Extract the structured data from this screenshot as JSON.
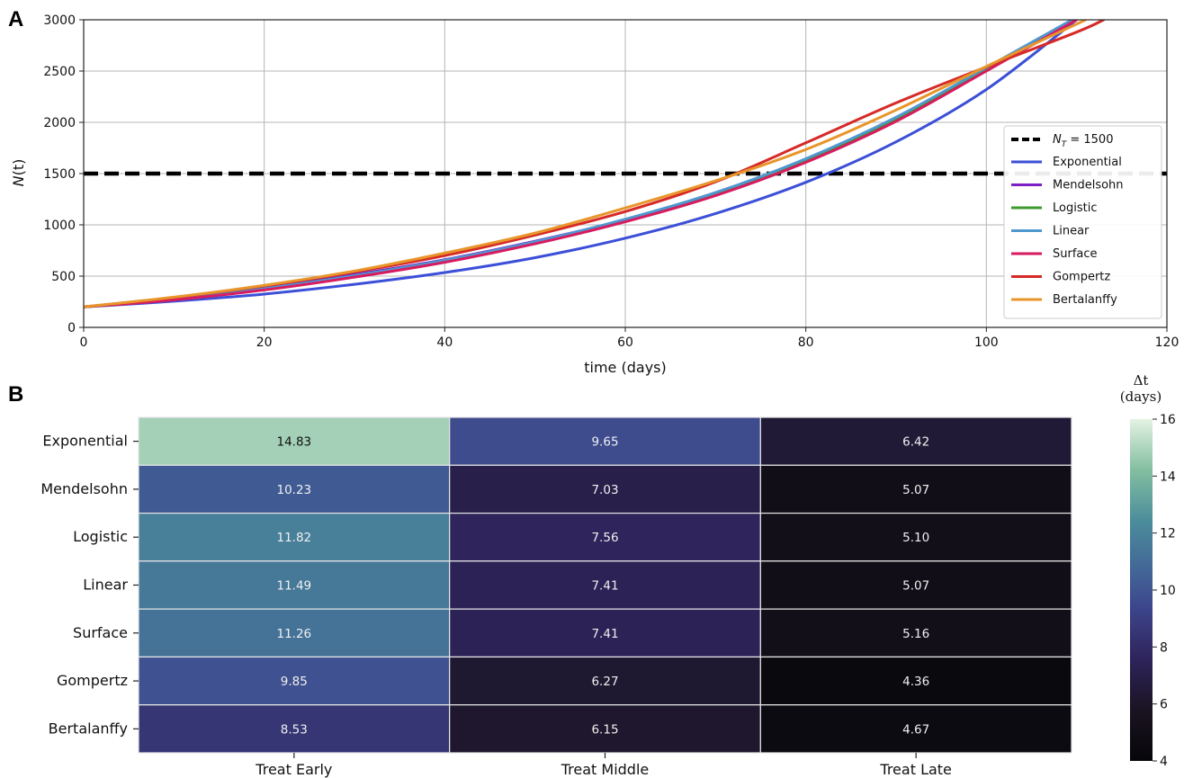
{
  "panel_a_label": "A",
  "panel_b_label": "B",
  "colors": {
    "threshold": "#000000",
    "Exponential": "#3b4fd8",
    "Mendelsohn": "#7d1fc4",
    "Logistic": "#3c9a2d",
    "Linear": "#4f97cf",
    "Surface": "#d81b60",
    "Gompertz": "#d62a27",
    "Bertalanffy": "#e8952b",
    "grid": "#b5b5b5"
  },
  "chart_data": [
    {
      "type": "line",
      "xlabel": "time (days)",
      "ylabel": "N(t)",
      "xlim": [
        0,
        120
      ],
      "ylim": [
        0,
        3000
      ],
      "xticks": [
        "0",
        "20",
        "40",
        "60",
        "80",
        "100",
        "120"
      ],
      "yticks": [
        "0",
        "500",
        "1000",
        "1500",
        "2000",
        "2500",
        "3000"
      ],
      "grid": true,
      "legend_position": "right",
      "threshold": {
        "label_main": "N",
        "label_sub": "T",
        "label_rest": " = 1500",
        "y": 1500,
        "style": "dashed"
      },
      "series": [
        {
          "name": "Exponential",
          "x": [
            0,
            10,
            20,
            30,
            40,
            50,
            60,
            70,
            80,
            90,
            100,
            110
          ],
          "y": [
            200,
            255,
            325,
            420,
            535,
            680,
            870,
            1110,
            1415,
            1810,
            2320,
            3000
          ]
        },
        {
          "name": "Mendelsohn",
          "x": [
            0,
            10,
            20,
            30,
            40,
            50,
            60,
            70,
            80,
            90,
            100,
            110
          ],
          "y": [
            200,
            280,
            385,
            515,
            660,
            840,
            1050,
            1300,
            1620,
            2040,
            2520,
            3000
          ]
        },
        {
          "name": "Logistic",
          "x": [
            0,
            10,
            20,
            30,
            40,
            50,
            60,
            70,
            80,
            90,
            100,
            109.5
          ],
          "y": [
            200,
            272,
            372,
            495,
            640,
            820,
            1040,
            1300,
            1625,
            2030,
            2520,
            3000
          ]
        },
        {
          "name": "Linear",
          "x": [
            0,
            10,
            20,
            30,
            40,
            50,
            60,
            70,
            80,
            90,
            100,
            109.5
          ],
          "y": [
            200,
            275,
            377,
            505,
            655,
            835,
            1055,
            1315,
            1645,
            2050,
            2535,
            3000
          ]
        },
        {
          "name": "Surface",
          "x": [
            0,
            10,
            20,
            30,
            40,
            50,
            60,
            70,
            80,
            90,
            100,
            110
          ],
          "y": [
            200,
            268,
            365,
            490,
            635,
            815,
            1030,
            1285,
            1610,
            2010,
            2500,
            3000
          ]
        },
        {
          "name": "Gompertz",
          "x": [
            0,
            10,
            20,
            30,
            40,
            50,
            60,
            70,
            80,
            90,
            100,
            110,
            113
          ],
          "y": [
            200,
            292,
            405,
            540,
            700,
            900,
            1130,
            1420,
            1800,
            2190,
            2540,
            2880,
            3000
          ]
        },
        {
          "name": "Bertalanffy",
          "x": [
            0,
            10,
            20,
            30,
            40,
            50,
            60,
            70,
            80,
            90,
            100,
            111
          ],
          "y": [
            200,
            295,
            410,
            550,
            725,
            920,
            1165,
            1430,
            1735,
            2120,
            2545,
            3000
          ]
        }
      ]
    },
    {
      "type": "heatmap",
      "rows": [
        "Exponential",
        "Mendelsohn",
        "Logistic",
        "Linear",
        "Surface",
        "Gompertz",
        "Bertalanffy"
      ],
      "columns": [
        "Treat Early",
        "Treat Middle",
        "Treat Late"
      ],
      "values": [
        [
          14.83,
          9.65,
          6.42
        ],
        [
          10.23,
          7.03,
          5.07
        ],
        [
          11.82,
          7.56,
          5.1
        ],
        [
          11.49,
          7.41,
          5.07
        ],
        [
          11.26,
          7.41,
          5.16
        ],
        [
          9.85,
          6.27,
          4.36
        ],
        [
          8.53,
          6.15,
          4.67
        ]
      ],
      "colorbar": {
        "label_line1": "Δt",
        "label_line2": "(days)",
        "vmin": 4,
        "vmax": 16,
        "ticks": [
          "4",
          "6",
          "8",
          "10",
          "12",
          "14",
          "16"
        ]
      }
    }
  ]
}
